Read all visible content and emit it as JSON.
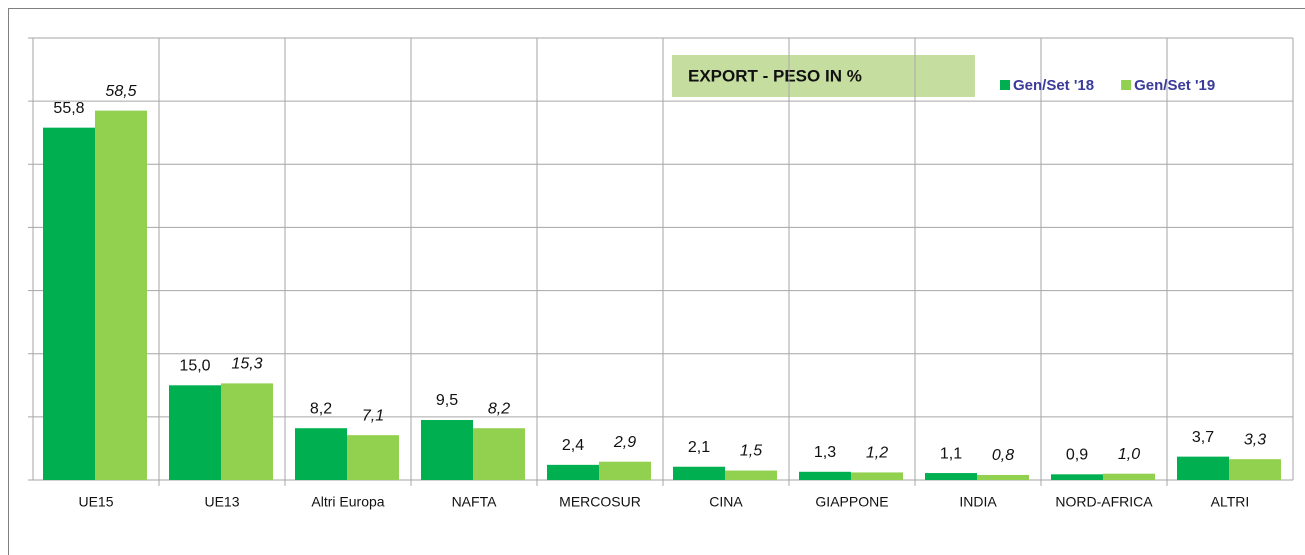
{
  "chart_data": {
    "type": "bar",
    "title": "EXPORT - PESO IN %",
    "categories": [
      "UE15",
      "UE13",
      "Altri Europa",
      "NAFTA",
      "MERCOSUR",
      "CINA",
      "GIAPPONE",
      "INDIA",
      "NORD-AFRICA",
      "ALTRI"
    ],
    "series": [
      {
        "name": "Gen/Set '18",
        "color": "#00b050",
        "values": [
          55.8,
          15.0,
          8.2,
          9.5,
          2.4,
          2.1,
          1.3,
          1.1,
          0.9,
          3.7
        ],
        "value_labels": [
          "55,8",
          "15,0",
          "8,2",
          "9,5",
          "2,4",
          "2,1",
          "1,3",
          "1,1",
          "0,9",
          "3,7"
        ]
      },
      {
        "name": "Gen/Set '19",
        "color": "#92d050",
        "values": [
          58.5,
          15.3,
          7.1,
          8.2,
          2.9,
          1.5,
          1.2,
          0.8,
          1.0,
          3.3
        ],
        "value_labels": [
          "58,5",
          "15,3",
          "7,1",
          "8,2",
          "2,9",
          "1,5",
          "1,2",
          "0,8",
          "1,0",
          "3,3"
        ]
      }
    ],
    "ylim": [
      0,
      70
    ],
    "yticks": [
      0,
      10,
      20,
      30,
      40,
      50,
      60,
      70
    ],
    "grid": true,
    "legend": "top-right"
  }
}
